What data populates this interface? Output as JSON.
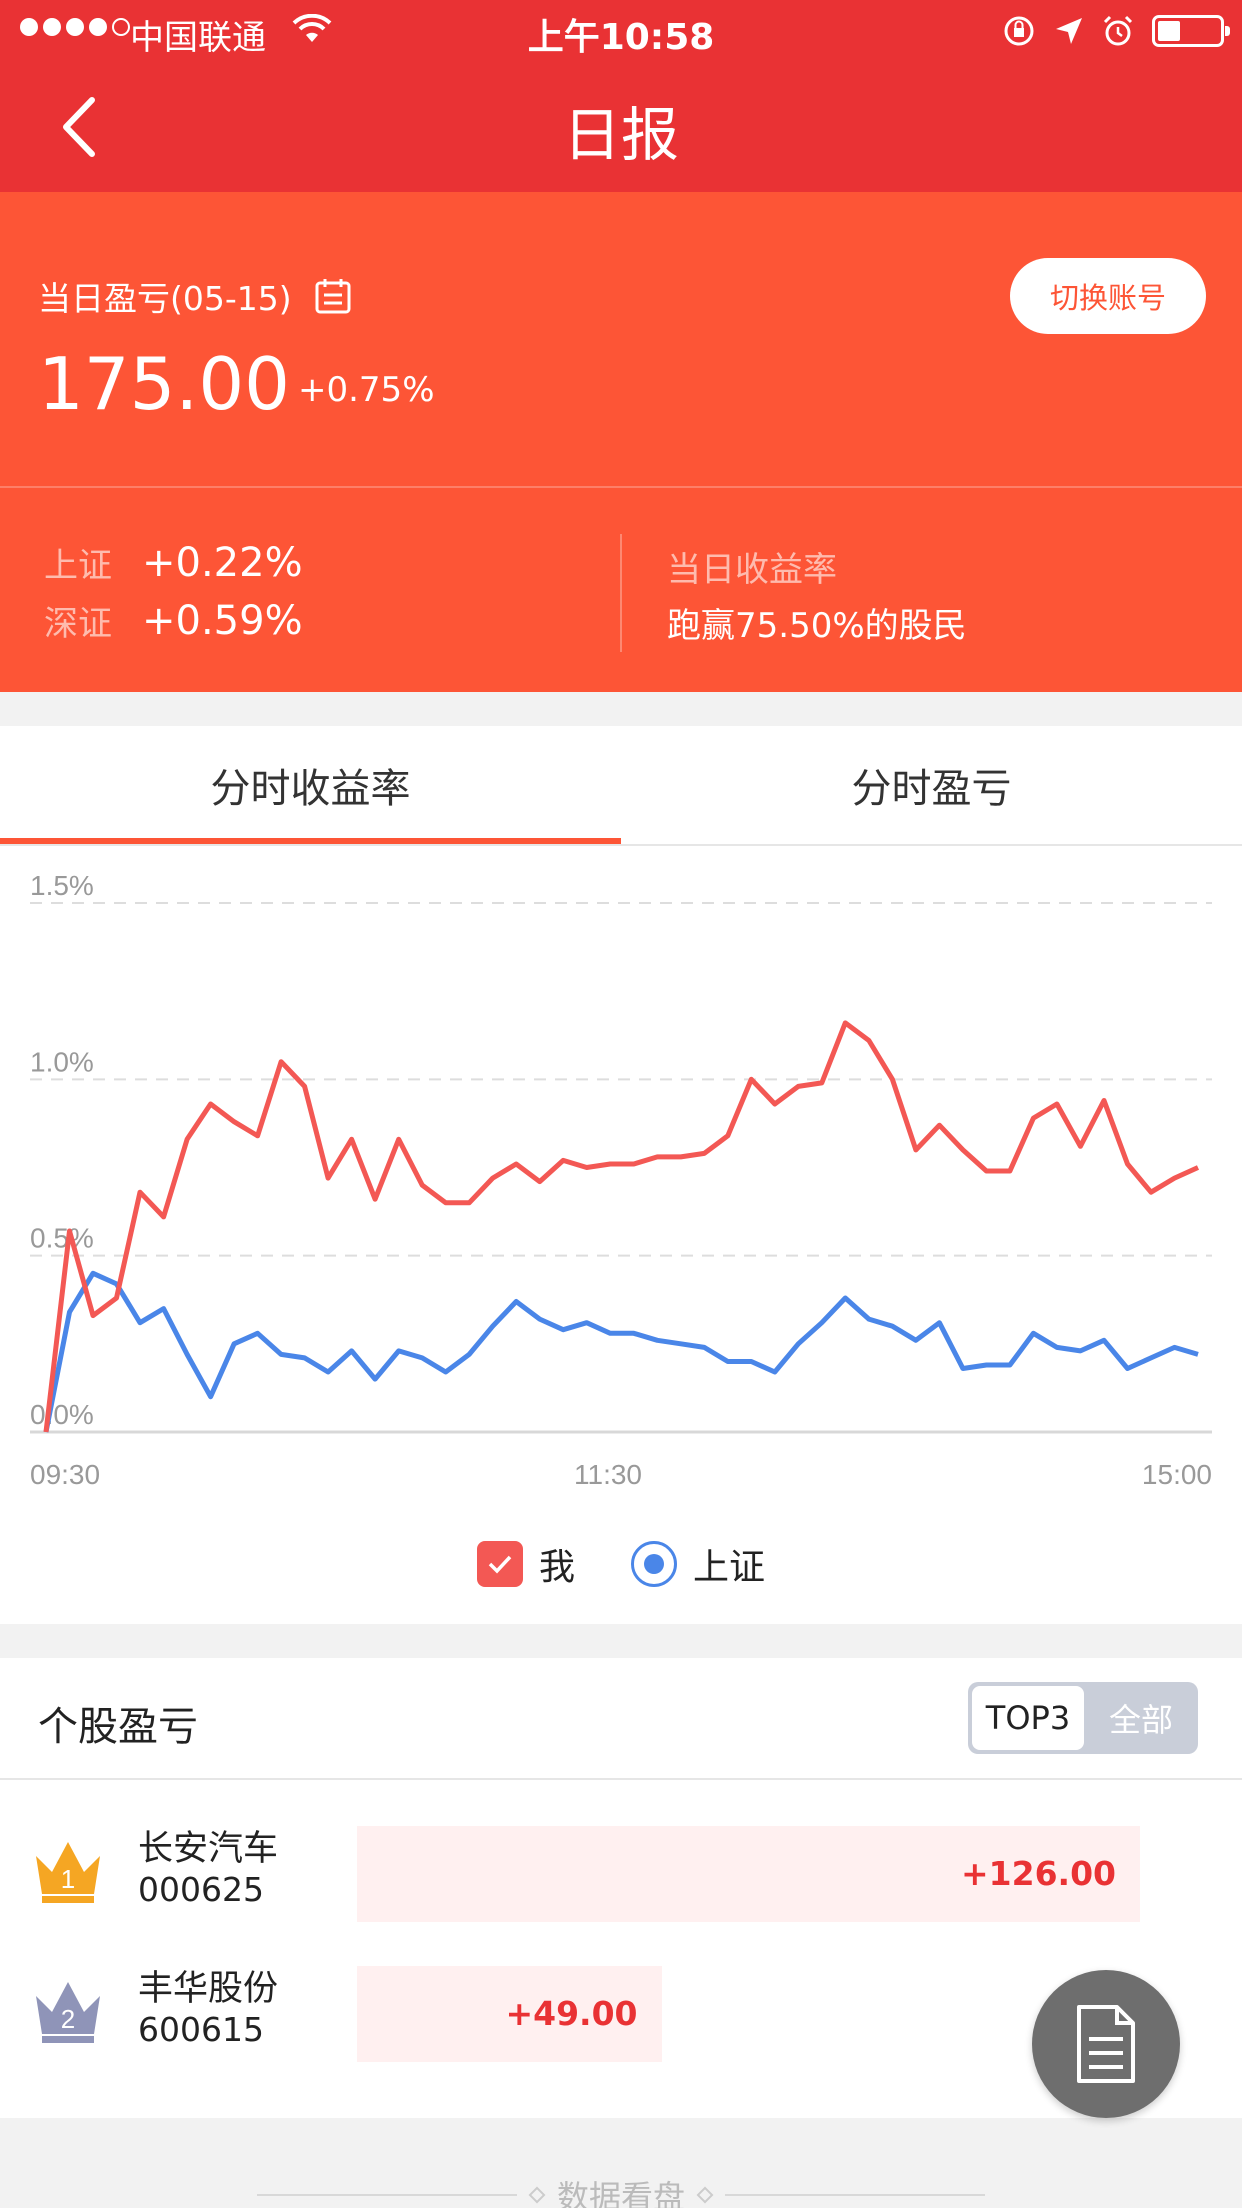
{
  "status_bar": {
    "carrier": "中国联通",
    "time": "上午10:58"
  },
  "nav": {
    "title": "日报"
  },
  "summary": {
    "label": "当日盈亏(05-15)",
    "value": "175.00",
    "change_pct": "+0.75%",
    "switch_account": "切换账号",
    "index_sh_name": "上证",
    "index_sh_value": "+0.22%",
    "index_sz_name": "深证",
    "index_sz_value": "+0.59%",
    "rate_label": "当日收益率",
    "rate_text": "跑赢75.50%的股民"
  },
  "tabs": {
    "left": "分时收益率",
    "right": "分时盈亏",
    "active": "left"
  },
  "chart_data": {
    "type": "line",
    "y_tick_labels": [
      "0.0%",
      "0.5%",
      "1.0%",
      "1.5%"
    ],
    "x_tick_labels": [
      "09:30",
      "11:30",
      "15:00"
    ],
    "ylim": [
      0,
      1.5
    ],
    "grid": true,
    "legend_position": "bottom-center",
    "series": [
      {
        "name": "我",
        "color": "#f35854",
        "values": [
          0.0,
          0.57,
          0.33,
          0.38,
          0.68,
          0.61,
          0.83,
          0.93,
          0.88,
          0.84,
          1.05,
          0.98,
          0.72,
          0.83,
          0.66,
          0.83,
          0.7,
          0.65,
          0.65,
          0.72,
          0.76,
          0.71,
          0.77,
          0.75,
          0.76,
          0.76,
          0.78,
          0.78,
          0.79,
          0.84,
          1.0,
          0.93,
          0.98,
          0.99,
          1.16,
          1.11,
          1.0,
          0.8,
          0.87,
          0.8,
          0.74,
          0.74,
          0.89,
          0.93,
          0.81,
          0.94,
          0.76,
          0.68,
          0.72,
          0.75
        ]
      },
      {
        "name": "上证",
        "color": "#4a86e8",
        "values": [
          0.0,
          0.34,
          0.45,
          0.42,
          0.31,
          0.35,
          0.22,
          0.1,
          0.25,
          0.28,
          0.22,
          0.21,
          0.17,
          0.23,
          0.15,
          0.23,
          0.21,
          0.17,
          0.22,
          0.3,
          0.37,
          0.32,
          0.29,
          0.31,
          0.28,
          0.28,
          0.26,
          0.25,
          0.24,
          0.2,
          0.2,
          0.17,
          0.25,
          0.31,
          0.38,
          0.32,
          0.3,
          0.26,
          0.31,
          0.18,
          0.19,
          0.19,
          0.28,
          0.24,
          0.23,
          0.26,
          0.18,
          0.21,
          0.24,
          0.22
        ]
      }
    ]
  },
  "stocks": {
    "title": "个股盈亏",
    "seg_top3": "TOP3",
    "seg_all": "全部",
    "max_value": 126,
    "items": [
      {
        "rank": "1",
        "name": "长安汽车",
        "code": "000625",
        "value": 126,
        "value_text": "+126.00",
        "crown_color": "#f5a623"
      },
      {
        "rank": "2",
        "name": "丰华股份",
        "code": "600615",
        "value": 49,
        "value_text": "+49.00",
        "crown_color": "#8f94b8"
      }
    ]
  },
  "footer": {
    "label": "数据看盘"
  }
}
